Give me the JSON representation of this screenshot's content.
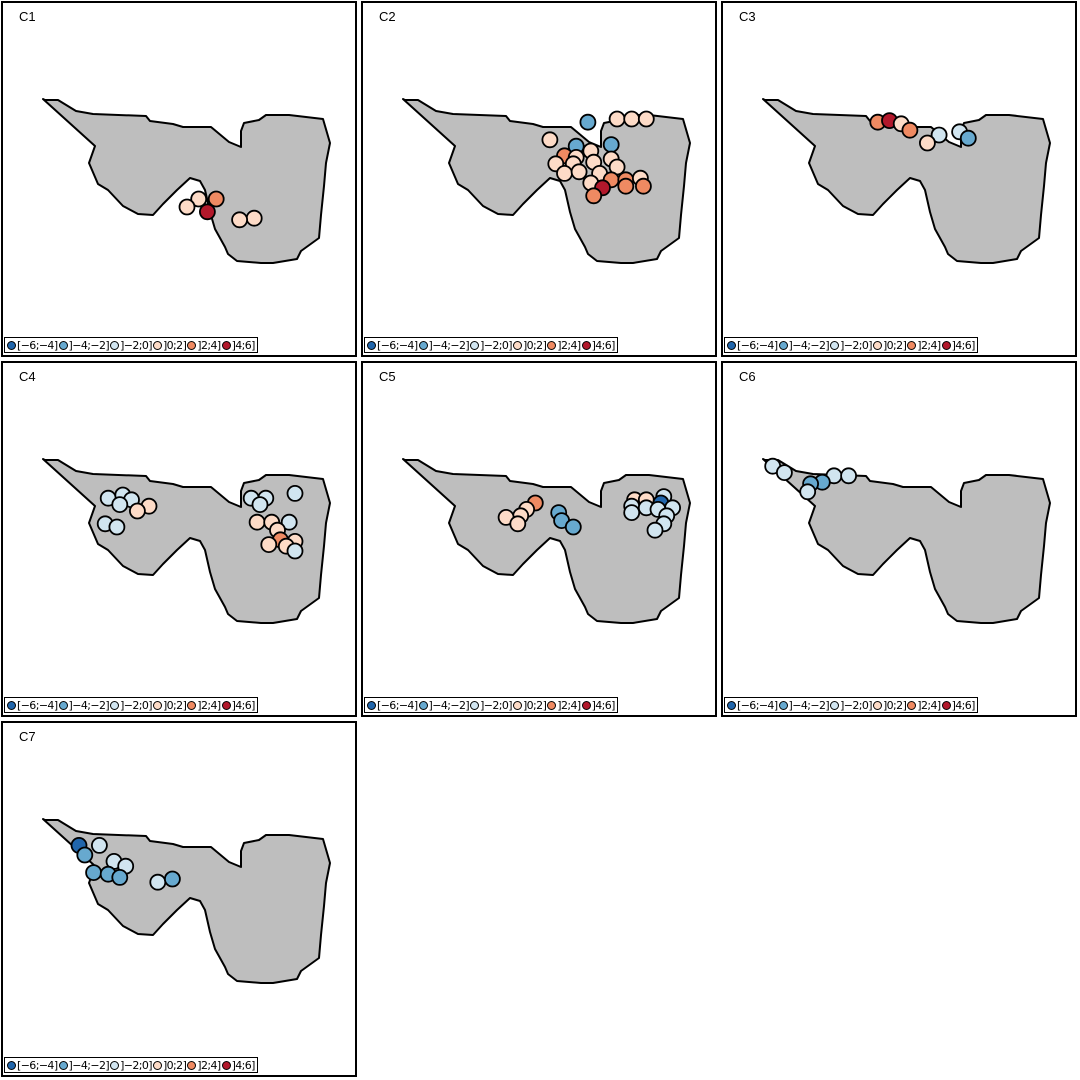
{
  "panels": [
    {
      "label": "C1",
      "points": [
        {
          "lon": 0.54,
          "lat": 0.4,
          "v": 1.0
        },
        {
          "lon": 0.6,
          "lat": 0.4,
          "v": 2.6
        },
        {
          "lon": 0.5,
          "lat": 0.35,
          "v": 1.0
        },
        {
          "lon": 0.57,
          "lat": 0.32,
          "v": 4.8
        },
        {
          "lon": 0.73,
          "lat": 0.28,
          "v": 1.0
        },
        {
          "lon": 0.68,
          "lat": 0.27,
          "v": 1.0
        }
      ]
    },
    {
      "label": "C2",
      "points": [
        {
          "lon": 0.64,
          "lat": 0.88,
          "v": -3.0
        },
        {
          "lon": 0.74,
          "lat": 0.9,
          "v": 1.0
        },
        {
          "lon": 0.79,
          "lat": 0.9,
          "v": 1.0
        },
        {
          "lon": 0.84,
          "lat": 0.9,
          "v": 1.0
        },
        {
          "lon": 0.51,
          "lat": 0.77,
          "v": 1.0
        },
        {
          "lon": 0.6,
          "lat": 0.73,
          "v": -3.0
        },
        {
          "lon": 0.72,
          "lat": 0.74,
          "v": -3.0
        },
        {
          "lon": 0.65,
          "lat": 0.7,
          "v": 1.0
        },
        {
          "lon": 0.56,
          "lat": 0.67,
          "v": 2.6
        },
        {
          "lon": 0.6,
          "lat": 0.66,
          "v": 1.0
        },
        {
          "lon": 0.72,
          "lat": 0.65,
          "v": 1.0
        },
        {
          "lon": 0.53,
          "lat": 0.62,
          "v": 1.0
        },
        {
          "lon": 0.59,
          "lat": 0.62,
          "v": 1.0
        },
        {
          "lon": 0.66,
          "lat": 0.63,
          "v": 1.0
        },
        {
          "lon": 0.74,
          "lat": 0.6,
          "v": 1.0
        },
        {
          "lon": 0.56,
          "lat": 0.56,
          "v": 1.0
        },
        {
          "lon": 0.61,
          "lat": 0.57,
          "v": 1.0
        },
        {
          "lon": 0.68,
          "lat": 0.56,
          "v": 1.0
        },
        {
          "lon": 0.72,
          "lat": 0.52,
          "v": 2.6
        },
        {
          "lon": 0.77,
          "lat": 0.52,
          "v": 2.6
        },
        {
          "lon": 0.82,
          "lat": 0.53,
          "v": 1.0
        },
        {
          "lon": 0.65,
          "lat": 0.5,
          "v": 1.0
        },
        {
          "lon": 0.69,
          "lat": 0.47,
          "v": 4.8
        },
        {
          "lon": 0.77,
          "lat": 0.48,
          "v": 2.6
        },
        {
          "lon": 0.83,
          "lat": 0.48,
          "v": 2.6
        },
        {
          "lon": 0.66,
          "lat": 0.42,
          "v": 2.6
        }
      ]
    },
    {
      "label": "C3",
      "points": [
        {
          "lon": 0.4,
          "lat": 0.88,
          "v": 2.6
        },
        {
          "lon": 0.44,
          "lat": 0.89,
          "v": 4.8
        },
        {
          "lon": 0.48,
          "lat": 0.87,
          "v": 1.0
        },
        {
          "lon": 0.51,
          "lat": 0.83,
          "v": 2.6
        },
        {
          "lon": 0.61,
          "lat": 0.8,
          "v": -1.0
        },
        {
          "lon": 0.68,
          "lat": 0.82,
          "v": -1.0
        },
        {
          "lon": 0.71,
          "lat": 0.78,
          "v": -3.0
        },
        {
          "lon": 0.57,
          "lat": 0.75,
          "v": 1.0
        }
      ]
    },
    {
      "label": "C4",
      "points": [
        {
          "lon": 0.23,
          "lat": 0.78,
          "v": -1.0
        },
        {
          "lon": 0.28,
          "lat": 0.8,
          "v": -1.0
        },
        {
          "lon": 0.31,
          "lat": 0.77,
          "v": -1.0
        },
        {
          "lon": 0.27,
          "lat": 0.74,
          "v": -1.0
        },
        {
          "lon": 0.37,
          "lat": 0.73,
          "v": 1.0
        },
        {
          "lon": 0.33,
          "lat": 0.7,
          "v": 1.0
        },
        {
          "lon": 0.22,
          "lat": 0.62,
          "v": -1.0
        },
        {
          "lon": 0.26,
          "lat": 0.6,
          "v": -1.0
        },
        {
          "lon": 0.72,
          "lat": 0.78,
          "v": -1.0
        },
        {
          "lon": 0.77,
          "lat": 0.78,
          "v": -1.0
        },
        {
          "lon": 0.87,
          "lat": 0.81,
          "v": -1.0
        },
        {
          "lon": 0.75,
          "lat": 0.74,
          "v": -1.0
        },
        {
          "lon": 0.74,
          "lat": 0.63,
          "v": 1.0
        },
        {
          "lon": 0.79,
          "lat": 0.63,
          "v": 1.0
        },
        {
          "lon": 0.85,
          "lat": 0.63,
          "v": -1.0
        },
        {
          "lon": 0.81,
          "lat": 0.58,
          "v": 1.0
        },
        {
          "lon": 0.82,
          "lat": 0.52,
          "v": 2.6
        },
        {
          "lon": 0.87,
          "lat": 0.51,
          "v": 1.0
        },
        {
          "lon": 0.78,
          "lat": 0.49,
          "v": 1.0
        },
        {
          "lon": 0.84,
          "lat": 0.48,
          "v": 1.0
        },
        {
          "lon": 0.87,
          "lat": 0.45,
          "v": -1.0
        }
      ]
    },
    {
      "label": "C5",
      "points": [
        {
          "lon": 0.46,
          "lat": 0.75,
          "v": 2.6
        },
        {
          "lon": 0.43,
          "lat": 0.71,
          "v": 1.0
        },
        {
          "lon": 0.41,
          "lat": 0.67,
          "v": 1.0
        },
        {
          "lon": 0.36,
          "lat": 0.66,
          "v": 1.0
        },
        {
          "lon": 0.4,
          "lat": 0.62,
          "v": 1.0
        },
        {
          "lon": 0.54,
          "lat": 0.69,
          "v": -3.0
        },
        {
          "lon": 0.55,
          "lat": 0.64,
          "v": -3.0
        },
        {
          "lon": 0.59,
          "lat": 0.6,
          "v": -3.0
        },
        {
          "lon": 0.8,
          "lat": 0.77,
          "v": 1.0
        },
        {
          "lon": 0.84,
          "lat": 0.77,
          "v": 1.0
        },
        {
          "lon": 0.9,
          "lat": 0.79,
          "v": -1.0
        },
        {
          "lon": 0.89,
          "lat": 0.75,
          "v": -5.0
        },
        {
          "lon": 0.79,
          "lat": 0.73,
          "v": -1.0
        },
        {
          "lon": 0.84,
          "lat": 0.72,
          "v": -1.0
        },
        {
          "lon": 0.88,
          "lat": 0.71,
          "v": -1.0
        },
        {
          "lon": 0.93,
          "lat": 0.72,
          "v": -1.0
        },
        {
          "lon": 0.79,
          "lat": 0.69,
          "v": -1.0
        },
        {
          "lon": 0.91,
          "lat": 0.67,
          "v": -1.0
        },
        {
          "lon": 0.9,
          "lat": 0.62,
          "v": -1.0
        },
        {
          "lon": 0.87,
          "lat": 0.58,
          "v": -1.0
        }
      ]
    },
    {
      "label": "C6",
      "points": [
        {
          "lon": 0.04,
          "lat": 0.98,
          "v": -1.0
        },
        {
          "lon": 0.08,
          "lat": 0.94,
          "v": -1.0
        },
        {
          "lon": 0.25,
          "lat": 0.92,
          "v": -1.0
        },
        {
          "lon": 0.3,
          "lat": 0.92,
          "v": -1.0
        },
        {
          "lon": 0.21,
          "lat": 0.88,
          "v": -3.0
        },
        {
          "lon": 0.17,
          "lat": 0.87,
          "v": -3.0
        },
        {
          "lon": 0.16,
          "lat": 0.82,
          "v": -1.0
        }
      ]
    },
    {
      "label": "C7",
      "points": [
        {
          "lon": 0.13,
          "lat": 0.86,
          "v": -5.0
        },
        {
          "lon": 0.2,
          "lat": 0.86,
          "v": -1.0
        },
        {
          "lon": 0.15,
          "lat": 0.8,
          "v": -3.0
        },
        {
          "lon": 0.25,
          "lat": 0.76,
          "v": -1.0
        },
        {
          "lon": 0.29,
          "lat": 0.73,
          "v": -1.0
        },
        {
          "lon": 0.18,
          "lat": 0.69,
          "v": -3.0
        },
        {
          "lon": 0.23,
          "lat": 0.68,
          "v": -3.0
        },
        {
          "lon": 0.27,
          "lat": 0.66,
          "v": -3.0
        },
        {
          "lon": 0.4,
          "lat": 0.63,
          "v": -1.0
        },
        {
          "lon": 0.45,
          "lat": 0.65,
          "v": -3.0
        }
      ]
    }
  ],
  "legend": {
    "items": [
      {
        "label": "[−6;−4]",
        "color": "#2166ac"
      },
      {
        "label": "]−4;−2]",
        "color": "#67a9cf"
      },
      {
        "label": "]−2;0]",
        "color": "#d1e5f0"
      },
      {
        "label": "]0;2]",
        "color": "#fddbc7"
      },
      {
        "label": "]2;4]",
        "color": "#ef8a62"
      },
      {
        "label": "]4;6]",
        "color": "#b2182b"
      }
    ]
  },
  "region": {
    "fill": "#bebebe",
    "stroke": "#000000"
  }
}
